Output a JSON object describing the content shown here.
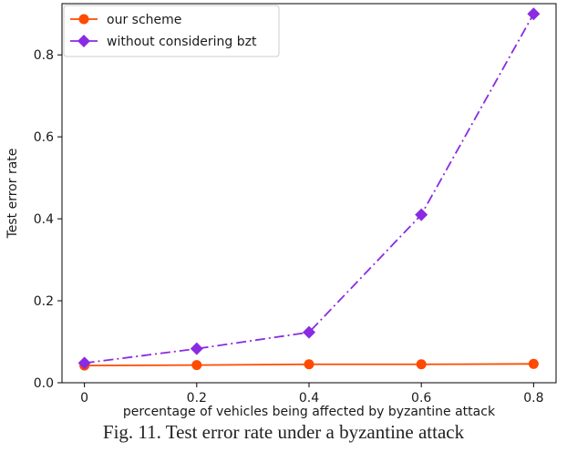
{
  "chart_data": {
    "type": "line",
    "title": "",
    "xlabel": "percentage of vehicles being affected by byzantine attack",
    "ylabel": "Test error rate",
    "x": [
      0,
      0.2,
      0.4,
      0.6,
      0.8
    ],
    "x_ticks": [
      "0",
      "0.2",
      "0.4",
      "0.6",
      "0.8"
    ],
    "y_ticks": [
      "0.0",
      "0.2",
      "0.4",
      "0.6",
      "0.8"
    ],
    "xlim": [
      -0.04,
      0.84
    ],
    "ylim": [
      0.0,
      0.925
    ],
    "grid": false,
    "legend_position": "top-left",
    "series": [
      {
        "name": "our scheme",
        "color": "#ff4a00",
        "line_style": "solid",
        "marker": "circle",
        "values": [
          0.042,
          0.043,
          0.045,
          0.045,
          0.046
        ]
      },
      {
        "name": "without considering bzt",
        "color": "#8a2be2",
        "line_style": "dash-dot",
        "marker": "diamond",
        "values": [
          0.048,
          0.083,
          0.123,
          0.41,
          0.9
        ]
      }
    ]
  },
  "caption": "Fig. 11. Test error rate under a byzantine attack"
}
